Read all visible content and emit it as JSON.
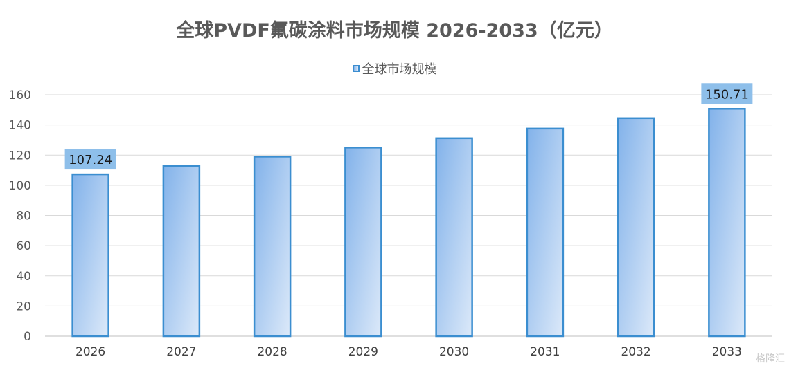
{
  "chart_data": {
    "type": "bar",
    "title": "全球PVDF氟碳涂料市场规模 2026-2033（亿元）",
    "categories": [
      "2026",
      "2027",
      "2028",
      "2029",
      "2030",
      "2031",
      "2032",
      "2033"
    ],
    "series": [
      {
        "name": "全球市场规模",
        "values": [
          107.24,
          112.7,
          119.0,
          125.0,
          131.2,
          137.6,
          144.5,
          150.71
        ]
      }
    ],
    "data_labels": [
      {
        "category": "2026",
        "text": "107.24"
      },
      {
        "category": "2033",
        "text": "150.71"
      }
    ],
    "yticks": [
      "0",
      "20",
      "40",
      "60",
      "80",
      "100",
      "120",
      "140",
      "160"
    ],
    "ylim": [
      0,
      160
    ],
    "grid": true,
    "legend_position": "top-center",
    "colors": {
      "bar_start": "#82b2ea",
      "bar_end": "#dce9f9",
      "bar_border": "#3b8ed0",
      "label_bg": "#8ebfea"
    }
  },
  "watermark": "格隆汇"
}
